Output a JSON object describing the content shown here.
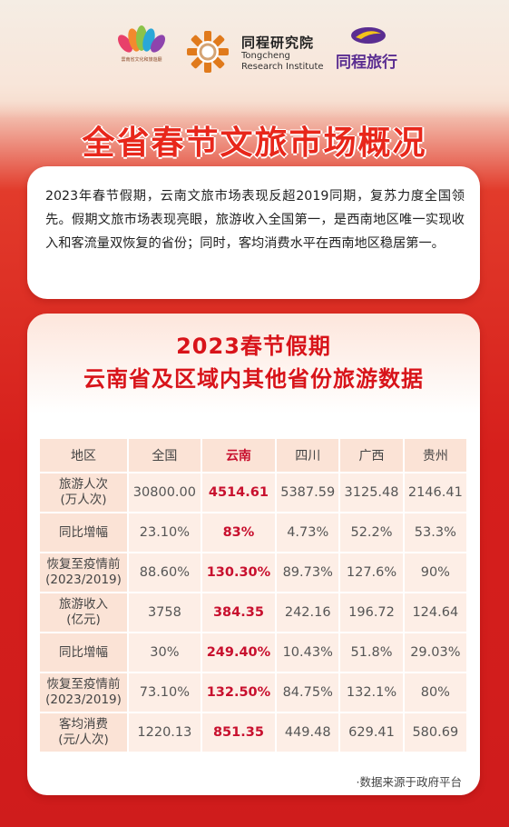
{
  "header": {
    "logo1_text": "雲南省文化和旅遊廳",
    "logo2_cn": "同程研究院",
    "logo2_en1": "Tongcheng",
    "logo2_en2": "Research Institute",
    "logo3_text": "同程旅行",
    "logo_colors": {
      "purple": "#5a2d91",
      "yellow": "#f2c31b",
      "orange": "#e07a1c"
    }
  },
  "title": "全省春节文旅市场概况",
  "intro": "2023年春节假期，云南文旅市场表现反超2019同期，复苏力度全国领先。假期文旅市场表现亮眼，旅游收入全国第一，是西南地区唯一实现收入和客流量双恢复的省份；同时，客均消费水平在西南地区稳居第一。",
  "table_title_1": "2023春节假期",
  "table_title_2": "云南省及区域内其他省份旅游数据",
  "table": {
    "header": [
      "地区",
      "全国",
      "云南",
      "四川",
      "广西",
      "贵州"
    ],
    "rows": [
      {
        "label1": "旅游人次",
        "label2": "(万人次)",
        "cells": [
          "30800.00",
          "4514.61",
          "5387.59",
          "3125.48",
          "2146.41"
        ]
      },
      {
        "label1": "同比增幅",
        "label2": "",
        "cells": [
          "23.10%",
          "83%",
          "4.73%",
          "52.2%",
          "53.3%"
        ]
      },
      {
        "label1": "恢复至疫情前",
        "label2": "(2023/2019)",
        "cells": [
          "88.60%",
          "130.30%",
          "89.73%",
          "127.6%",
          "90%"
        ]
      },
      {
        "label1": "旅游收入",
        "label2": "(亿元)",
        "cells": [
          "3758",
          "384.35",
          "242.16",
          "196.72",
          "124.64"
        ]
      },
      {
        "label1": "同比增幅",
        "label2": "",
        "cells": [
          "30%",
          "249.40%",
          "10.43%",
          "51.8%",
          "29.03%"
        ]
      },
      {
        "label1": "恢复至疫情前",
        "label2": "(2023/2019)",
        "cells": [
          "73.10%",
          "132.50%",
          "84.75%",
          "132.1%",
          "80%"
        ]
      },
      {
        "label1": "客均消费",
        "label2": "(元/人次)",
        "cells": [
          "1220.13",
          "851.35",
          "449.48",
          "629.41",
          "580.69"
        ]
      }
    ]
  },
  "footnote": "·数据来源于政府平台",
  "colors": {
    "title_red": "#e8271b",
    "highlight": "#c8102e",
    "cell_bg": "#fdeee6"
  }
}
